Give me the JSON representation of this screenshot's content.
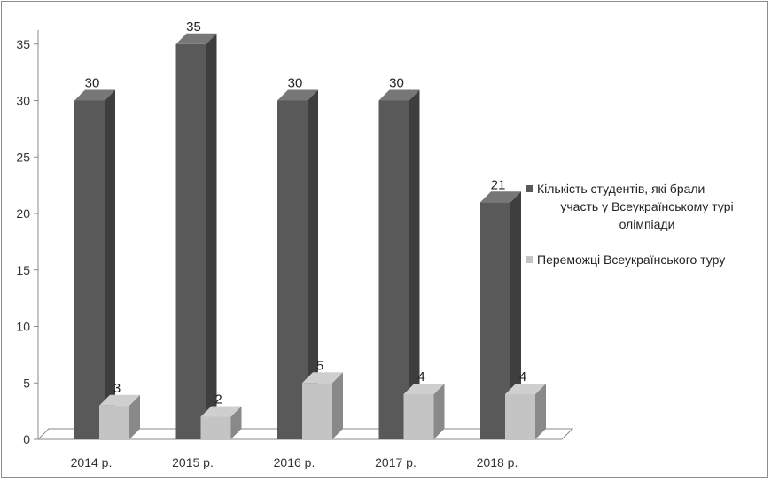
{
  "chart_data": {
    "type": "bar",
    "title": "",
    "xlabel": "",
    "ylabel": "",
    "categories": [
      "2014 р.",
      "2015 р.",
      "2016 р.",
      "2017 р.",
      "2018 р."
    ],
    "series": [
      {
        "name": "Кількість студентів, які брали участь у Всеукраїнському турі олімпіади",
        "legend_lines": [
          "Кількість студентів, які брали",
          "участь у Всеукраїнському турі",
          "олімпіади"
        ],
        "values": [
          30,
          35,
          30,
          30,
          21
        ],
        "value_labels": [
          "30",
          "35",
          "30",
          "30",
          "21"
        ],
        "color": "#595959"
      },
      {
        "name": "Переможці Всеукраїнського туру",
        "legend_lines": [
          "Переможці Всеукраїнського туру"
        ],
        "values": [
          3,
          2,
          5,
          4,
          4
        ],
        "value_labels": [
          "3",
          "2",
          "5",
          "4",
          "4"
        ],
        "color": "#c4c4c4"
      }
    ],
    "ylim": [
      0,
      35
    ],
    "yticks": [
      "0",
      "5",
      "10",
      "15",
      "20",
      "25",
      "30",
      "35"
    ],
    "grid": false,
    "legend_position": "right",
    "style": "3d"
  }
}
